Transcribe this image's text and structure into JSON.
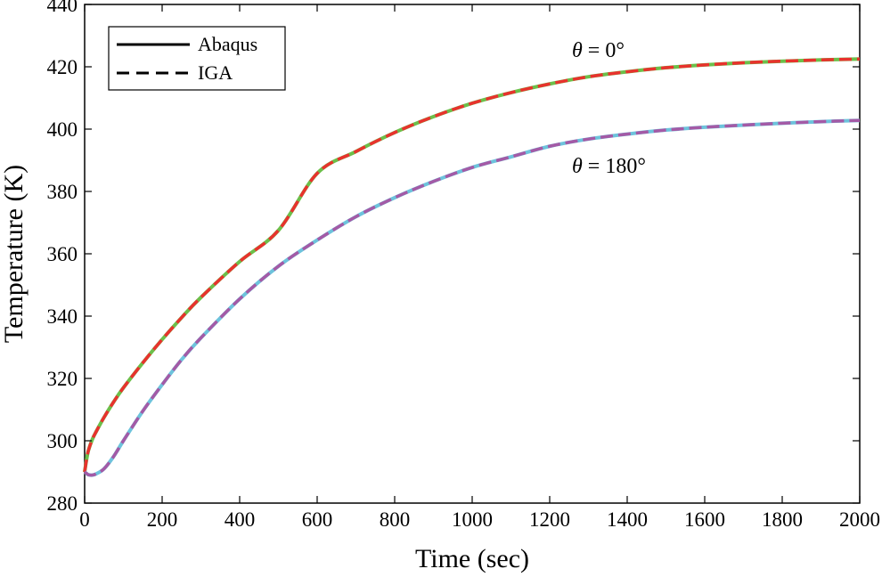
{
  "chart_data": {
    "type": "line",
    "xlabel": "Time (sec)",
    "ylabel": "Temperature (K)",
    "xlim": [
      0,
      2000
    ],
    "ylim": [
      280,
      440
    ],
    "xticks": [
      0,
      200,
      400,
      600,
      800,
      1000,
      1200,
      1400,
      1600,
      1800,
      2000
    ],
    "yticks": [
      280,
      300,
      320,
      340,
      360,
      380,
      400,
      420,
      440
    ],
    "grid": false,
    "legend": {
      "position": "top-left",
      "entries": [
        {
          "label": "Abaqus",
          "style": "solid",
          "color": "#000000"
        },
        {
          "label": "IGA",
          "style": "dashed",
          "color": "#000000"
        }
      ]
    },
    "annotations": [
      {
        "symbol": "θ",
        "text": " = 0°",
        "x": 1270,
        "y": 424
      },
      {
        "symbol": "θ",
        "text": " = 180°",
        "x": 1270,
        "y": 386
      }
    ],
    "x": [
      0,
      5,
      10,
      20,
      30,
      50,
      75,
      100,
      150,
      200,
      250,
      300,
      400,
      500,
      600,
      700,
      800,
      900,
      1000,
      1100,
      1200,
      1300,
      1400,
      1500,
      1600,
      1700,
      1800,
      1900,
      2000
    ],
    "series": [
      {
        "name": "Abaqus θ = 0°",
        "style": "solid",
        "color": "#6cbf4a",
        "values": [
          290,
          294,
          297,
          300.5,
          303,
          307.5,
          312.5,
          317,
          325,
          332.5,
          339.5,
          346,
          357.5,
          367.5,
          385.8,
          392.8,
          398.9,
          404.0,
          408.3,
          411.7,
          414.5,
          416.8,
          418.4,
          419.7,
          420.6,
          421.3,
          421.8,
          422.2,
          422.5
        ]
      },
      {
        "name": "IGA θ = 0°",
        "style": "dashed",
        "color": "#e8322d",
        "values": [
          290,
          294,
          297,
          300.5,
          303,
          307.5,
          312.5,
          317,
          325,
          332.5,
          339.5,
          346,
          357.5,
          367.5,
          385.8,
          392.8,
          398.9,
          404.0,
          408.3,
          411.7,
          414.5,
          416.8,
          418.4,
          419.7,
          420.6,
          421.3,
          421.8,
          422.2,
          422.5
        ]
      },
      {
        "name": "Abaqus θ = 180°",
        "style": "solid",
        "color": "#6dc3dc",
        "values": [
          290,
          289.5,
          289.1,
          289.0,
          289.4,
          291.0,
          295.0,
          300.0,
          309.5,
          318.0,
          326.0,
          333.0,
          345.5,
          356.0,
          364.4,
          371.9,
          378.0,
          383.2,
          387.7,
          391.1,
          394.5,
          396.8,
          398.4,
          399.7,
          400.6,
          401.3,
          401.9,
          402.4,
          402.8
        ]
      },
      {
        "name": "IGA θ = 180°",
        "style": "dashed",
        "color": "#a45aa6",
        "values": [
          290,
          289.5,
          289.1,
          289.0,
          289.4,
          291.0,
          295.0,
          300.0,
          309.5,
          318.0,
          326.0,
          333.0,
          345.5,
          356.0,
          364.4,
          371.9,
          378.0,
          383.2,
          387.7,
          391.1,
          394.5,
          396.8,
          398.4,
          399.7,
          400.6,
          401.3,
          401.9,
          402.4,
          402.8
        ]
      }
    ]
  }
}
